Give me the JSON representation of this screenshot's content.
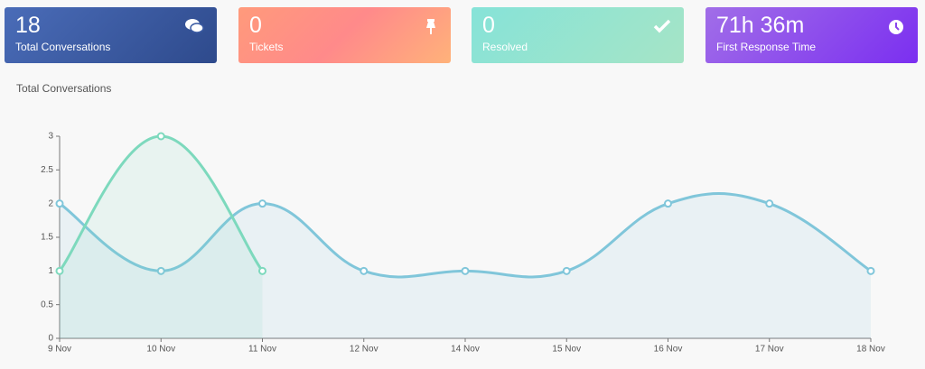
{
  "cards": [
    {
      "value": 18,
      "label": "Total Conversations"
    },
    {
      "value": 0,
      "label": "Tickets"
    },
    {
      "value": 0,
      "label": "Resolved"
    },
    {
      "value": "71h 36m",
      "label": "First Response Time"
    }
  ],
  "chart_data": {
    "type": "line",
    "title": "Total Conversations",
    "categories": [
      "9 Nov",
      "10 Nov",
      "11 Nov",
      "12 Nov",
      "14 Nov",
      "15 Nov",
      "16 Nov",
      "17 Nov",
      "18 Nov"
    ],
    "series": [
      {
        "color": "#80c6da",
        "values": [
          2,
          1,
          2,
          1,
          1,
          1,
          2,
          2,
          1
        ]
      },
      {
        "color": "#7dd9bd",
        "values": [
          1,
          3,
          1,
          null,
          null,
          null,
          null,
          null,
          null
        ]
      }
    ],
    "ylim": [
      0,
      3
    ],
    "yticks": [
      0,
      0.5,
      1,
      1.5,
      2,
      2.5,
      3
    ]
  }
}
